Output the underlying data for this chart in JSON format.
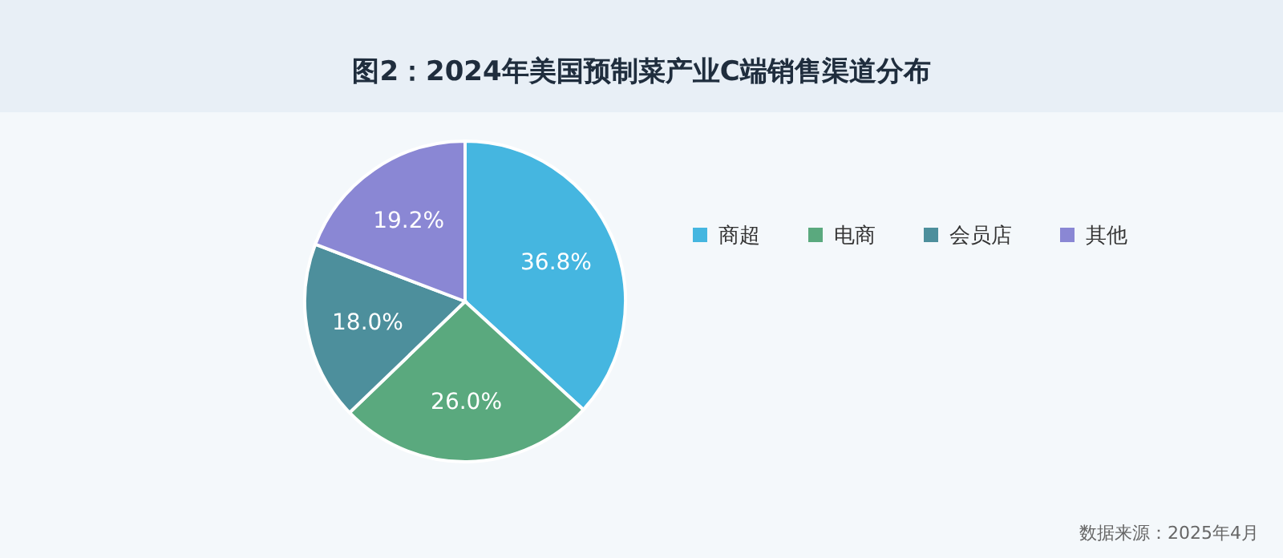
{
  "chart_data": {
    "type": "pie",
    "title": "图2：2024年美国预制菜产业C端销售渠道分布",
    "categories": [
      "商超",
      "电商",
      "会员店",
      "其他"
    ],
    "values": [
      36.8,
      26.0,
      18.0,
      19.2
    ],
    "colors": [
      "#45b6e0",
      "#5aa97e",
      "#4d8f9c",
      "#8a87d4"
    ],
    "value_labels": [
      "36.8%",
      "26.0%",
      "18.0%",
      "19.2%"
    ],
    "legend": "right",
    "annotations": [
      "数据来源：2025年4月"
    ]
  }
}
